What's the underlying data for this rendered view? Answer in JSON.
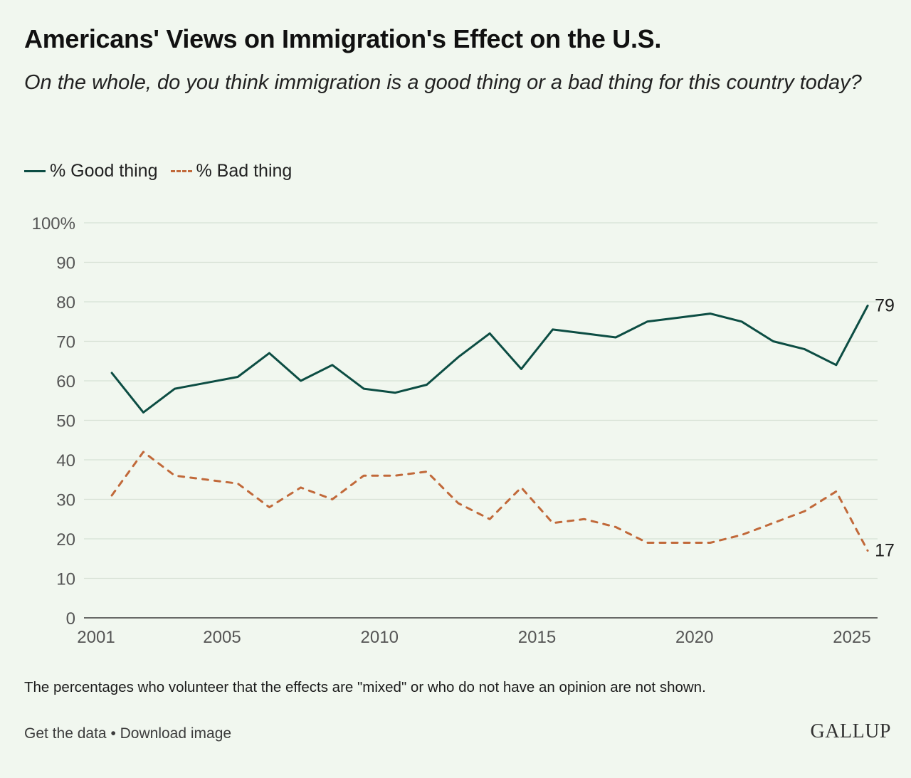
{
  "title": "Americans' Views on Immigration's Effect on the U.S.",
  "subtitle": "On the whole, do you think immigration is a good thing or a bad thing for this country today?",
  "legend": {
    "good": "% Good thing",
    "bad": "% Bad thing"
  },
  "note": "The percentages who volunteer that the effects are \"mixed\" or who do not have an opinion are not shown.",
  "links": {
    "get_data": "Get the data",
    "separator": "•",
    "download": "Download image"
  },
  "logo": "GALLUP",
  "colors": {
    "good": "#0c4d43",
    "bad": "#c1693a",
    "grid": "#d7e1d5",
    "background": "#f1f7ef"
  },
  "chart_data": {
    "type": "line",
    "x": [
      2001.5,
      2002.5,
      2003.5,
      2004.5,
      2005.5,
      2006.5,
      2007.5,
      2008.5,
      2009.5,
      2010.5,
      2011.5,
      2012.5,
      2013.5,
      2014.5,
      2015.5,
      2016.5,
      2017.5,
      2018.5,
      2019.5,
      2020.5,
      2021.5,
      2022.5,
      2023.5,
      2024.5,
      2025.5
    ],
    "series": [
      {
        "name": "% Good thing",
        "key": "good",
        "style": "solid",
        "values": [
          62,
          52,
          58,
          59.5,
          61,
          67,
          60,
          64,
          58,
          57,
          59,
          66,
          72,
          63,
          73,
          72,
          71,
          75,
          76,
          77,
          75,
          70,
          68,
          64,
          79
        ],
        "end_label": "79"
      },
      {
        "name": "% Bad thing",
        "key": "bad",
        "style": "dashed",
        "values": [
          31,
          42,
          36,
          35,
          34,
          28,
          33,
          30,
          36,
          36,
          37,
          29,
          25,
          33,
          24,
          25,
          23,
          19,
          19,
          19,
          21,
          24,
          27,
          32,
          17
        ],
        "end_label": "17"
      }
    ],
    "xticks": [
      2001,
      2005,
      2010,
      2015,
      2020,
      2025
    ],
    "xtick_labels": [
      "2001",
      "2005",
      "2010",
      "2015",
      "2020",
      "2025"
    ],
    "yticks": [
      0,
      10,
      20,
      30,
      40,
      50,
      60,
      70,
      80,
      90,
      100
    ],
    "ytick_labels": [
      "0",
      "10",
      "20",
      "30",
      "40",
      "50",
      "60",
      "70",
      "80",
      "90",
      "100%"
    ],
    "xlim": [
      2001,
      2025.9
    ],
    "ylim": [
      0,
      100
    ],
    "grid": true,
    "legend_position": "top-left"
  }
}
